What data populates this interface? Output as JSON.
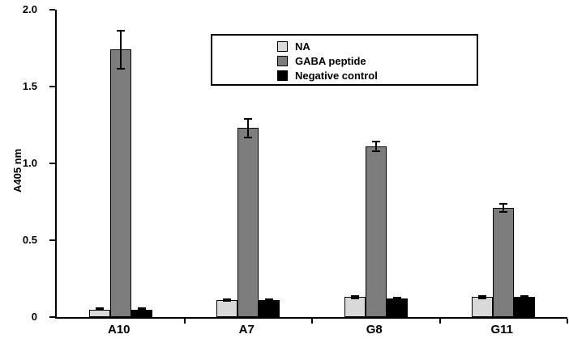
{
  "chart_data": {
    "type": "bar",
    "title": "",
    "xlabel": "",
    "ylabel": "A405 nm",
    "ylim": [
      0,
      2.0
    ],
    "yticks": [
      0,
      0.5,
      1.0,
      1.5,
      2.0
    ],
    "ytick_labels": [
      "0",
      "0.5",
      "1.0",
      "1.5",
      "2.0"
    ],
    "grid": false,
    "legend_position": "top-center",
    "categories": [
      "A10",
      "A7",
      "G8",
      "G11"
    ],
    "series": [
      {
        "name": "NA",
        "color": "#d9d9d9",
        "values": [
          0.05,
          0.11,
          0.13,
          0.13
        ],
        "errors": [
          0.01,
          0.012,
          0.012,
          0.012
        ]
      },
      {
        "name": "GABA peptide",
        "color": "#7d7d7d",
        "values": [
          1.74,
          1.23,
          1.11,
          0.71
        ],
        "errors": [
          0.13,
          0.065,
          0.035,
          0.03
        ]
      },
      {
        "name": "Negative control",
        "color": "#000000",
        "values": [
          0.05,
          0.11,
          0.12,
          0.13
        ],
        "errors": [
          0.01,
          0.01,
          0.01,
          0.01
        ]
      }
    ]
  }
}
